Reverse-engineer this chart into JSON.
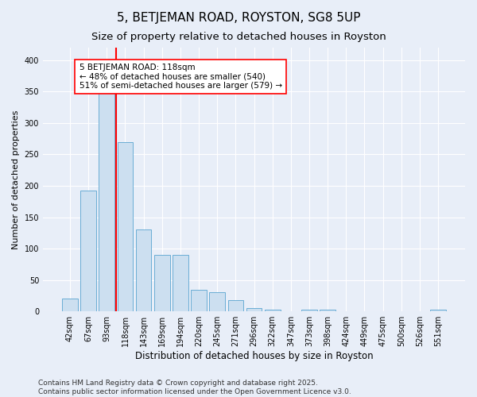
{
  "title": "5, BETJEMAN ROAD, ROYSTON, SG8 5UP",
  "subtitle": "Size of property relative to detached houses in Royston",
  "xlabel": "Distribution of detached houses by size in Royston",
  "ylabel": "Number of detached properties",
  "categories": [
    "42sqm",
    "67sqm",
    "93sqm",
    "118sqm",
    "143sqm",
    "169sqm",
    "194sqm",
    "220sqm",
    "245sqm",
    "271sqm",
    "296sqm",
    "322sqm",
    "347sqm",
    "373sqm",
    "398sqm",
    "424sqm",
    "449sqm",
    "475sqm",
    "500sqm",
    "526sqm",
    "551sqm"
  ],
  "values": [
    20,
    192,
    365,
    270,
    130,
    90,
    90,
    35,
    30,
    18,
    5,
    3,
    0,
    3,
    3,
    0,
    0,
    0,
    0,
    0,
    3
  ],
  "bar_color": "#ccdff0",
  "bar_edge_color": "#6aadd5",
  "vline_x": 2.5,
  "vline_color": "red",
  "annotation_text": "5 BETJEMAN ROAD: 118sqm\n← 48% of detached houses are smaller (540)\n51% of semi-detached houses are larger (579) →",
  "annotation_box_color": "white",
  "annotation_box_edge_color": "red",
  "ylim": [
    0,
    420
  ],
  "yticks": [
    0,
    50,
    100,
    150,
    200,
    250,
    300,
    350,
    400
  ],
  "bg_color": "#e8eef8",
  "plot_bg_color": "#e8eef8",
  "footer": "Contains HM Land Registry data © Crown copyright and database right 2025.\nContains public sector information licensed under the Open Government Licence v3.0.",
  "title_fontsize": 11,
  "subtitle_fontsize": 9.5,
  "xlabel_fontsize": 8.5,
  "ylabel_fontsize": 8,
  "tick_fontsize": 7,
  "footer_fontsize": 6.5,
  "annot_fontsize": 7.5
}
